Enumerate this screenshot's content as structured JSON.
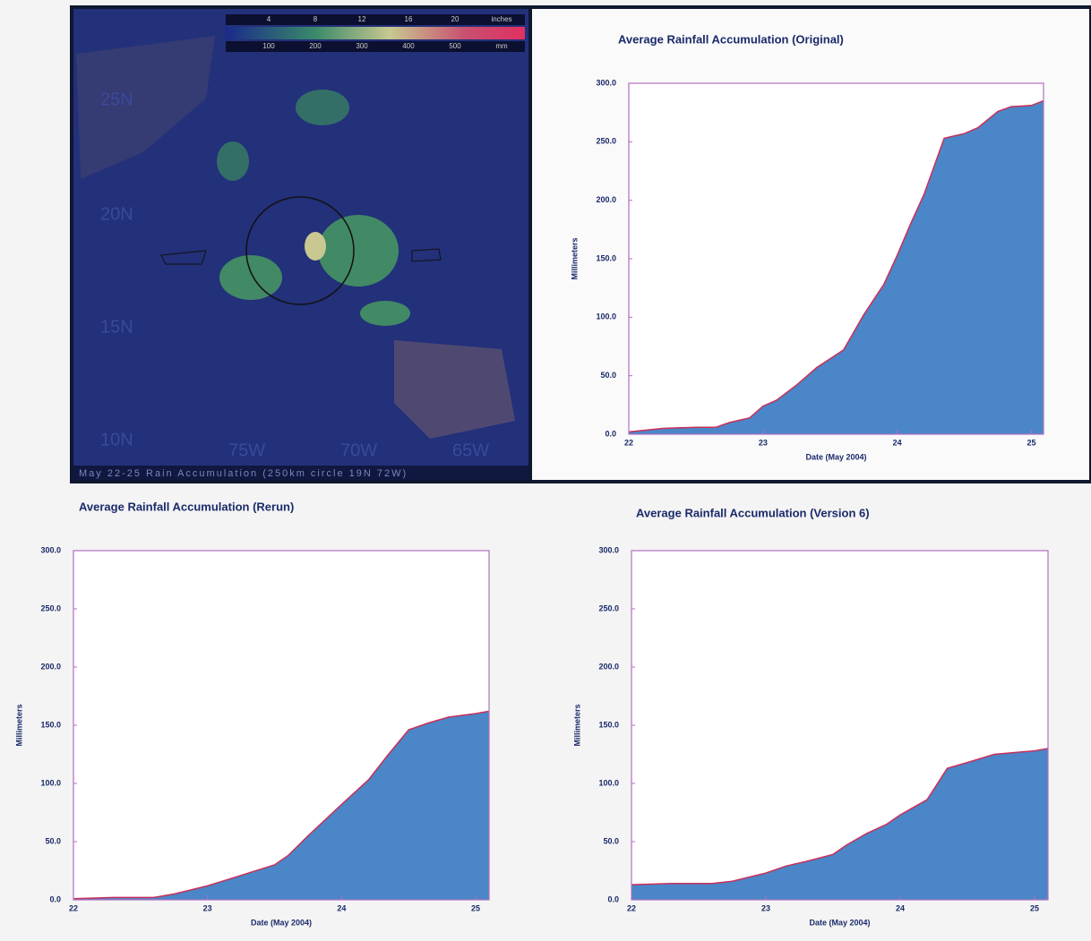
{
  "map": {
    "lat_labels": [
      "25N",
      "20N",
      "15N",
      "10N"
    ],
    "lon_labels": [
      "75W",
      "70W",
      "65W"
    ],
    "caption": "May 22-25 Rain Accumulation (250km circle 19N 72W)",
    "colorbar_inches": [
      "4",
      "8",
      "12",
      "16",
      "20",
      "inches"
    ],
    "colorbar_mm": [
      "100",
      "200",
      "300",
      "400",
      "500",
      "mm"
    ]
  },
  "chart_data": [
    {
      "type": "area",
      "title": "Average Rainfall Accumulation (Original)",
      "x_label": "Date (May 2004)",
      "y_label": "Millimeters",
      "fill_color": "#4a86c8",
      "line_color": "#c8305a",
      "xlim": [
        22,
        25.09
      ],
      "xticks": [
        22,
        23,
        24,
        25
      ],
      "ylim": [
        0,
        300
      ],
      "yticks": [
        {
          "value": 0,
          "label": "0.0"
        },
        {
          "value": 50,
          "label": "50.0"
        },
        {
          "value": 100,
          "label": "100.0"
        },
        {
          "value": 150,
          "label": "150.0"
        },
        {
          "value": 200,
          "label": "200.0"
        },
        {
          "value": 250,
          "label": "250.0"
        },
        {
          "value": 300,
          "label": "300.0"
        }
      ],
      "x": [
        22.0,
        22.25,
        22.5,
        22.65,
        22.75,
        22.9,
        23.0,
        23.1,
        23.25,
        23.4,
        23.6,
        23.75,
        23.9,
        24.0,
        24.1,
        24.2,
        24.35,
        24.5,
        24.6,
        24.75,
        24.85,
        25.0,
        25.09
      ],
      "values": [
        2,
        5,
        6,
        6,
        10,
        14,
        24,
        29,
        42,
        57,
        72,
        102,
        128,
        153,
        180,
        205,
        253,
        257,
        262,
        276,
        280,
        281,
        285
      ]
    },
    {
      "type": "area",
      "title": "Average Rainfall Accumulation (Rerun)",
      "x_label": "Date (May 2004)",
      "y_label": "Millimeters",
      "fill_color": "#4a86c8",
      "line_color": "#c8305a",
      "xlim": [
        22,
        25.1
      ],
      "xticks": [
        22,
        23,
        24,
        25
      ],
      "ylim": [
        0,
        300
      ],
      "yticks": [
        {
          "value": 0,
          "label": "0.0"
        },
        {
          "value": 50,
          "label": "50.0"
        },
        {
          "value": 100,
          "label": "100.0"
        },
        {
          "value": 150,
          "label": "150.0"
        },
        {
          "value": 200,
          "label": "200.0"
        },
        {
          "value": 250,
          "label": "250.0"
        },
        {
          "value": 300,
          "label": "300.0"
        }
      ],
      "x": [
        22.0,
        22.3,
        22.6,
        22.75,
        23.0,
        23.25,
        23.5,
        23.6,
        23.75,
        24.0,
        24.2,
        24.35,
        24.5,
        24.65,
        24.8,
        25.0,
        25.1
      ],
      "values": [
        1,
        2,
        2,
        5,
        12,
        21,
        30,
        38,
        55,
        82,
        103,
        125,
        146,
        152,
        157,
        160,
        162
      ]
    },
    {
      "type": "area",
      "title": "Average Rainfall Accumulation (Version 6)",
      "x_label": "Date (May 2004)",
      "y_label": "Millimeters",
      "fill_color": "#4a86c8",
      "line_color": "#c8305a",
      "xlim": [
        22,
        25.1
      ],
      "xticks": [
        22,
        23,
        24,
        25
      ],
      "ylim": [
        0,
        300
      ],
      "yticks": [
        {
          "value": 0,
          "label": "0.0"
        },
        {
          "value": 50,
          "label": "50.0"
        },
        {
          "value": 100,
          "label": "100.0"
        },
        {
          "value": 150,
          "label": "150.0"
        },
        {
          "value": 200,
          "label": "200.0"
        },
        {
          "value": 250,
          "label": "250.0"
        },
        {
          "value": 300,
          "label": "300.0"
        }
      ],
      "x": [
        22.0,
        22.3,
        22.6,
        22.75,
        23.0,
        23.15,
        23.3,
        23.5,
        23.6,
        23.75,
        23.9,
        24.0,
        24.2,
        24.35,
        24.5,
        24.7,
        25.0,
        25.1
      ],
      "values": [
        13,
        14,
        14,
        16,
        23,
        29,
        33,
        39,
        47,
        57,
        65,
        73,
        86,
        113,
        118,
        125,
        128,
        130
      ]
    }
  ]
}
